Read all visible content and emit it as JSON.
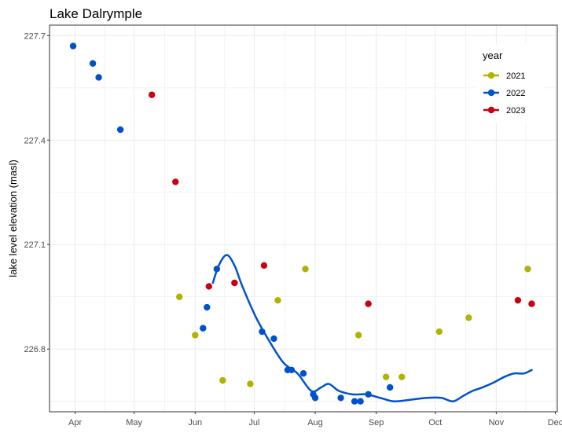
{
  "chart_data": {
    "type": "scatter",
    "title": "Lake Dalrymple",
    "xlabel": "",
    "ylabel": "lake level elevation (masl)",
    "x_axis": {
      "type": "month-of-year",
      "ticks": [
        {
          "label": "Apr",
          "day": 91
        },
        {
          "label": "May",
          "day": 121
        },
        {
          "label": "Jun",
          "day": 152
        },
        {
          "label": "Jul",
          "day": 182
        },
        {
          "label": "Aug",
          "day": 213
        },
        {
          "label": "Sep",
          "day": 244
        },
        {
          "label": "Oct",
          "day": 274
        },
        {
          "label": "Nov",
          "day": 305
        },
        {
          "label": "Dec",
          "day": 335
        }
      ],
      "xlim": [
        78,
        336
      ]
    },
    "y_axis": {
      "ticks": [
        "227.7",
        "227.4",
        "227.1",
        "226.8"
      ],
      "ylim": [
        226.62,
        227.73
      ]
    },
    "grid": true,
    "legend": {
      "title": "year",
      "position": "top-right"
    },
    "series": [
      {
        "name": "2021",
        "color": "#b2b200",
        "points": [
          {
            "date": "2021-05-24",
            "y": 226.95
          },
          {
            "date": "2021-06-01",
            "y": 226.84
          },
          {
            "date": "2021-06-15",
            "y": 226.71
          },
          {
            "date": "2021-06-29",
            "y": 226.7
          },
          {
            "date": "2021-07-13",
            "y": 226.94
          },
          {
            "date": "2021-07-27",
            "y": 227.03
          },
          {
            "date": "2021-08-23",
            "y": 226.84
          },
          {
            "date": "2021-09-06",
            "y": 226.72
          },
          {
            "date": "2021-09-14",
            "y": 226.72
          },
          {
            "date": "2021-10-03",
            "y": 226.85
          },
          {
            "date": "2021-10-18",
            "y": 226.89
          },
          {
            "date": "2021-11-17",
            "y": 227.03
          }
        ]
      },
      {
        "name": "2022",
        "color": "#0052cc",
        "points": [
          {
            "date": "2022-03-31",
            "y": 227.67
          },
          {
            "date": "2022-04-10",
            "y": 227.62
          },
          {
            "date": "2022-04-13",
            "y": 227.58
          },
          {
            "date": "2022-04-24",
            "y": 227.43
          },
          {
            "date": "2022-06-05",
            "y": 226.86
          },
          {
            "date": "2022-06-07",
            "y": 226.92
          },
          {
            "date": "2022-06-12",
            "y": 227.03
          },
          {
            "date": "2022-07-05",
            "y": 226.85
          },
          {
            "date": "2022-07-11",
            "y": 226.83
          },
          {
            "date": "2022-07-18",
            "y": 226.74
          },
          {
            "date": "2022-07-20",
            "y": 226.74
          },
          {
            "date": "2022-07-26",
            "y": 226.73
          },
          {
            "date": "2022-07-31",
            "y": 226.67
          },
          {
            "date": "2022-08-01",
            "y": 226.66
          },
          {
            "date": "2022-08-14",
            "y": 226.66
          },
          {
            "date": "2022-08-21",
            "y": 226.65
          },
          {
            "date": "2022-08-24",
            "y": 226.65
          },
          {
            "date": "2022-08-28",
            "y": 226.67
          },
          {
            "date": "2022-09-08",
            "y": 226.69
          }
        ],
        "trend": [
          {
            "date": "2022-06-10",
            "y": 226.99
          },
          {
            "date": "2022-06-13",
            "y": 227.04
          },
          {
            "date": "2022-06-17",
            "y": 227.07
          },
          {
            "date": "2022-06-21",
            "y": 227.04
          },
          {
            "date": "2022-06-25",
            "y": 226.98
          },
          {
            "date": "2022-07-02",
            "y": 226.89
          },
          {
            "date": "2022-07-09",
            "y": 226.82
          },
          {
            "date": "2022-07-16",
            "y": 226.76
          },
          {
            "date": "2022-07-23",
            "y": 226.73
          },
          {
            "date": "2022-07-30",
            "y": 226.68
          },
          {
            "date": "2022-08-04",
            "y": 226.69
          },
          {
            "date": "2022-08-08",
            "y": 226.7
          },
          {
            "date": "2022-08-13",
            "y": 226.68
          },
          {
            "date": "2022-08-20",
            "y": 226.67
          },
          {
            "date": "2022-08-27",
            "y": 226.67
          },
          {
            "date": "2022-09-03",
            "y": 226.66
          },
          {
            "date": "2022-09-10",
            "y": 226.65
          },
          {
            "date": "2022-09-19",
            "y": 226.655
          },
          {
            "date": "2022-09-27",
            "y": 226.66
          },
          {
            "date": "2022-10-04",
            "y": 226.66
          },
          {
            "date": "2022-10-10",
            "y": 226.65
          },
          {
            "date": "2022-10-15",
            "y": 226.665
          },
          {
            "date": "2022-10-20",
            "y": 226.68
          },
          {
            "date": "2022-10-25",
            "y": 226.69
          },
          {
            "date": "2022-10-31",
            "y": 226.705
          },
          {
            "date": "2022-11-05",
            "y": 226.72
          },
          {
            "date": "2022-11-10",
            "y": 226.73
          },
          {
            "date": "2022-11-15",
            "y": 226.73
          },
          {
            "date": "2022-11-19",
            "y": 226.74
          }
        ]
      },
      {
        "name": "2023",
        "color": "#cc0011",
        "points": [
          {
            "date": "2023-05-10",
            "y": 227.53
          },
          {
            "date": "2023-05-22",
            "y": 227.28
          },
          {
            "date": "2023-06-08",
            "y": 226.98
          },
          {
            "date": "2023-06-21",
            "y": 226.99
          },
          {
            "date": "2023-07-06",
            "y": 227.04
          },
          {
            "date": "2023-08-28",
            "y": 226.93
          },
          {
            "date": "2023-11-12",
            "y": 226.94
          },
          {
            "date": "2023-11-19",
            "y": 226.93
          }
        ]
      }
    ]
  }
}
